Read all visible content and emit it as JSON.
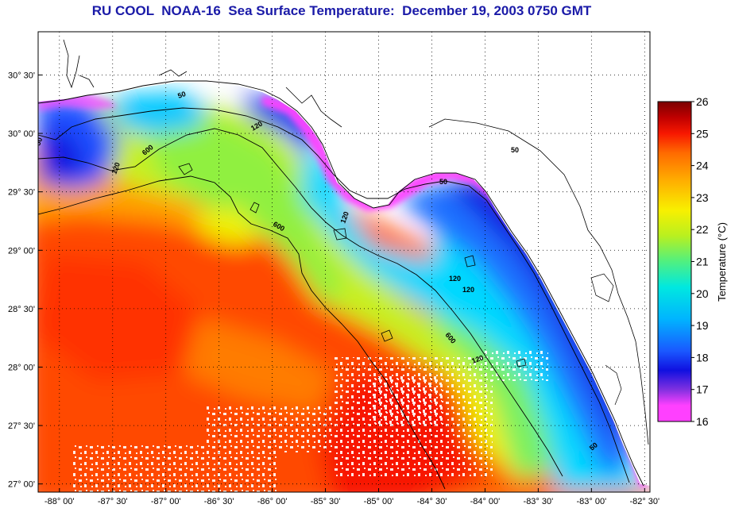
{
  "title": "RU COOL  NOAA-16  Sea Surface Temperature:  December 19, 2003 0750 GMT",
  "map": {
    "lat_labels": [
      "30° 30'",
      "30° 00'",
      "29° 30'",
      "29° 00'",
      "28° 30'",
      "28° 00'",
      "27° 30'",
      "27° 00'"
    ],
    "lat_values": [
      30.5,
      30.0,
      29.5,
      29.0,
      28.5,
      28.0,
      27.5,
      27.0
    ],
    "lon_labels": [
      "-88° 00'",
      "-87° 30'",
      "-87° 00'",
      "-86° 30'",
      "-86° 00'",
      "-85° 30'",
      "-85° 00'",
      "-84° 30'",
      "-84° 00'",
      "-83° 30'",
      "-83° 00'",
      "-82° 30'"
    ],
    "lon_values": [
      -88.0,
      -87.5,
      -87.0,
      -86.5,
      -86.0,
      -85.5,
      -85.0,
      -84.5,
      -84.0,
      -83.5,
      -83.0,
      -82.5
    ],
    "lat_range": [
      26.93,
      30.87
    ],
    "lon_range": [
      -88.2,
      -82.45
    ],
    "contour_labels": [
      "50",
      "50",
      "50",
      "50",
      "120",
      "120",
      "120",
      "120",
      "120",
      "120",
      "600",
      "600",
      "600",
      "50"
    ]
  },
  "colorbar": {
    "title": "Temperature (°C)",
    "ticks": [
      "26",
      "25",
      "24",
      "23",
      "22",
      "21",
      "20",
      "19",
      "18",
      "17",
      "16"
    ],
    "tick_values": [
      26,
      25,
      24,
      23,
      22,
      21,
      20,
      19,
      18,
      17,
      16
    ],
    "range": [
      16,
      26
    ],
    "colors": [
      "#ff40ff",
      "#8030e0",
      "#1010e0",
      "#1a58ff",
      "#00b4ff",
      "#00e8e0",
      "#50f080",
      "#b8f020",
      "#f8f000",
      "#ffb000",
      "#ff6a00",
      "#f81800",
      "#c00000",
      "#7a0000"
    ]
  }
}
